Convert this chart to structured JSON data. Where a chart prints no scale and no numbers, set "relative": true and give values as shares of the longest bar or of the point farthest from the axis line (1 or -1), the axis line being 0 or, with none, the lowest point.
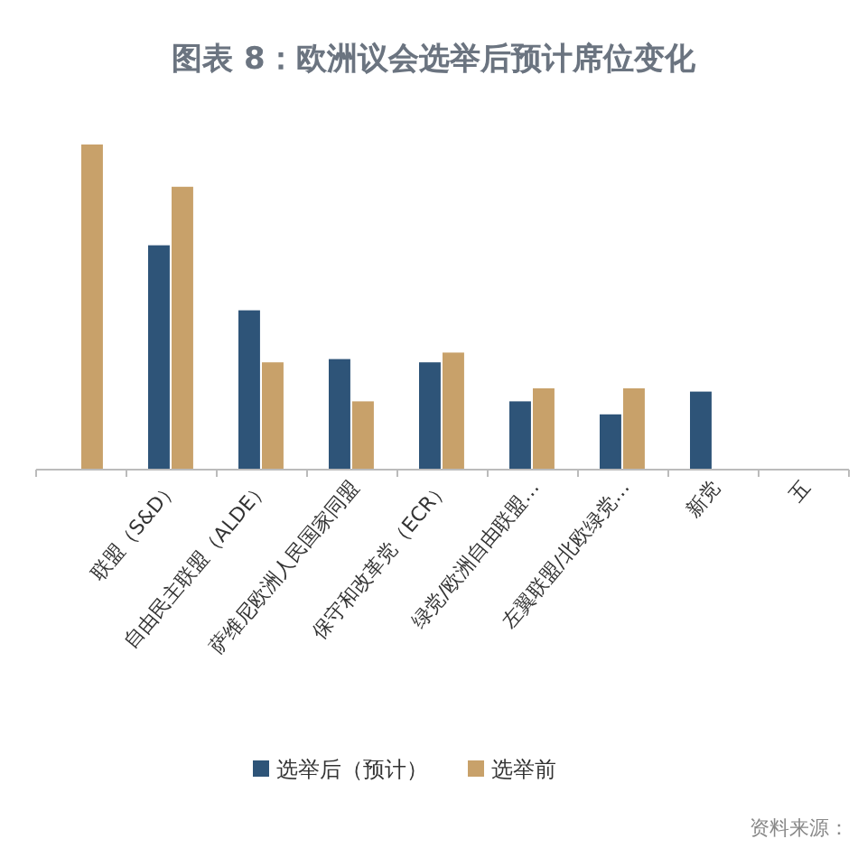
{
  "chart_data": {
    "type": "bar",
    "title": "图表 8：欧洲议会选举后预计席位变化",
    "relative": true,
    "legend": "bottom",
    "categories": [
      null,
      "联盟（S&D）",
      "自由民主联盟（ALDE）",
      "萨维尼欧洲人民国家同盟",
      "保守和改革党（ECR）",
      "绿党/欧洲自由联盟…",
      "左翼联盟/北欧绿党…",
      "新党",
      "五"
    ],
    "series": [
      {
        "name": "选举后（预计）",
        "color": "#2e5478",
        "values": [
          null,
          0.69,
          0.49,
          0.34,
          0.33,
          0.21,
          0.17,
          0.24,
          null
        ]
      },
      {
        "name": "选举前",
        "color": "#c8a16a",
        "values": [
          1,
          0.87,
          0.33,
          0.21,
          0.36,
          0.25,
          0.25,
          null,
          null
        ]
      }
    ],
    "annotations": [
      "资料来源："
    ]
  }
}
